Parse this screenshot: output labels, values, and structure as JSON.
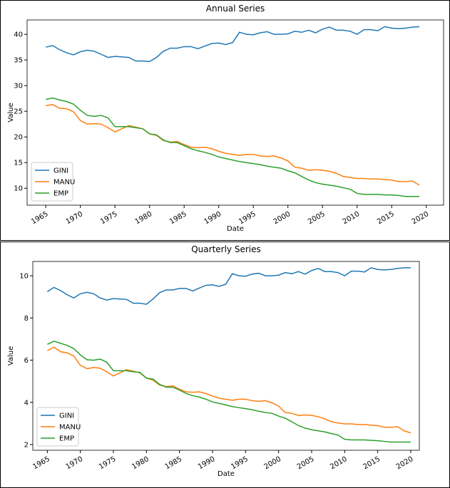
{
  "chart_data": [
    {
      "type": "line",
      "title": "Annual Series",
      "x_label": "Date",
      "y_label": "Value",
      "x": [
        1965,
        1966,
        1967,
        1968,
        1969,
        1970,
        1971,
        1972,
        1973,
        1974,
        1975,
        1976,
        1977,
        1978,
        1979,
        1980,
        1981,
        1982,
        1983,
        1984,
        1985,
        1986,
        1987,
        1988,
        1989,
        1990,
        1991,
        1992,
        1993,
        1994,
        1995,
        1996,
        1997,
        1998,
        1999,
        2000,
        2001,
        2002,
        2003,
        2004,
        2005,
        2006,
        2007,
        2008,
        2009,
        2010,
        2011,
        2012,
        2013,
        2014,
        2015,
        2016,
        2017,
        2018,
        2019
      ],
      "series": [
        {
          "name": "GINI",
          "color": "#1f77b4",
          "values": [
            37.5,
            37.8,
            37.0,
            36.4,
            36.0,
            36.6,
            36.9,
            36.7,
            36.1,
            35.5,
            35.7,
            35.6,
            35.5,
            34.8,
            34.8,
            34.7,
            35.5,
            36.7,
            37.3,
            37.3,
            37.6,
            37.6,
            37.2,
            37.7,
            38.2,
            38.3,
            38.0,
            38.4,
            40.4,
            40.0,
            39.9,
            40.3,
            40.5,
            40.0,
            40.0,
            40.1,
            40.6,
            40.4,
            40.8,
            40.3,
            41.0,
            41.4,
            40.8,
            40.8,
            40.6,
            40.0,
            40.9,
            40.9,
            40.7,
            41.5,
            41.2,
            41.1,
            41.2,
            41.4,
            41.5
          ]
        },
        {
          "name": "MANU",
          "color": "#ff7f0e",
          "values": [
            26.1,
            26.3,
            25.6,
            25.5,
            24.9,
            23.2,
            22.5,
            22.6,
            22.5,
            21.8,
            21.0,
            21.6,
            22.2,
            21.9,
            21.6,
            20.6,
            20.3,
            19.3,
            19.0,
            19.1,
            18.5,
            18.0,
            17.9,
            18.0,
            17.7,
            17.2,
            16.8,
            16.6,
            16.4,
            16.6,
            16.6,
            16.3,
            16.2,
            16.3,
            15.9,
            15.3,
            14.1,
            13.9,
            13.5,
            13.6,
            13.5,
            13.3,
            12.9,
            12.3,
            12.1,
            11.9,
            11.9,
            11.8,
            11.8,
            11.7,
            11.6,
            11.3,
            11.3,
            11.4,
            10.6
          ]
        },
        {
          "name": "EMP",
          "color": "#2ca02c",
          "values": [
            27.3,
            27.6,
            27.2,
            26.9,
            26.4,
            25.2,
            24.2,
            24.0,
            24.2,
            23.7,
            22.0,
            22.0,
            22.0,
            21.8,
            21.6,
            20.6,
            20.4,
            19.4,
            18.9,
            18.9,
            18.3,
            17.7,
            17.3,
            17.0,
            16.6,
            16.1,
            15.8,
            15.5,
            15.2,
            15.0,
            14.8,
            14.6,
            14.3,
            14.1,
            13.9,
            13.4,
            13.0,
            12.3,
            11.6,
            11.1,
            10.8,
            10.6,
            10.4,
            10.1,
            9.8,
            9.0,
            8.8,
            8.8,
            8.8,
            8.7,
            8.7,
            8.6,
            8.4,
            8.4,
            8.4
          ]
        }
      ],
      "xlim": [
        1962.3,
        2022.5
      ],
      "xticks": [
        1965,
        1970,
        1975,
        1980,
        1985,
        1990,
        1995,
        2000,
        2005,
        2010,
        2015,
        2020
      ],
      "ylim": [
        6.7,
        42.8
      ],
      "yticks": [
        10,
        15,
        20,
        25,
        30,
        35,
        40
      ],
      "legend": "lower left"
    },
    {
      "type": "line",
      "title": "Quarterly Series",
      "x_label": "Date",
      "y_label": "Value",
      "x": [
        1965,
        1966,
        1967,
        1968,
        1969,
        1970,
        1971,
        1972,
        1973,
        1974,
        1975,
        1976,
        1977,
        1978,
        1979,
        1980,
        1981,
        1982,
        1983,
        1984,
        1985,
        1986,
        1987,
        1988,
        1989,
        1990,
        1991,
        1992,
        1993,
        1994,
        1995,
        1996,
        1997,
        1998,
        1999,
        2000,
        2001,
        2002,
        2003,
        2004,
        2005,
        2006,
        2007,
        2008,
        2009,
        2010,
        2011,
        2012,
        2013,
        2014,
        2015,
        2016,
        2017,
        2018,
        2019,
        2020
      ],
      "series": [
        {
          "name": "GINI",
          "color": "#1f77b4",
          "values": [
            9.25,
            9.45,
            9.3,
            9.1,
            8.95,
            9.15,
            9.22,
            9.15,
            8.95,
            8.85,
            8.92,
            8.9,
            8.88,
            8.7,
            8.7,
            8.65,
            8.9,
            9.2,
            9.33,
            9.33,
            9.4,
            9.4,
            9.28,
            9.42,
            9.55,
            9.57,
            9.5,
            9.6,
            10.1,
            10.0,
            9.98,
            10.08,
            10.12,
            10.0,
            10.0,
            10.03,
            10.15,
            10.1,
            10.2,
            10.08,
            10.25,
            10.35,
            10.2,
            10.2,
            10.15,
            10.0,
            10.22,
            10.22,
            10.18,
            10.38,
            10.3,
            10.28,
            10.3,
            10.35,
            10.38,
            10.38
          ]
        },
        {
          "name": "MANU",
          "color": "#ff7f0e",
          "values": [
            6.45,
            6.62,
            6.4,
            6.35,
            6.2,
            5.75,
            5.6,
            5.65,
            5.62,
            5.45,
            5.25,
            5.4,
            5.55,
            5.48,
            5.4,
            5.15,
            5.05,
            4.82,
            4.75,
            4.78,
            4.62,
            4.5,
            4.48,
            4.5,
            4.42,
            4.3,
            4.2,
            4.15,
            4.1,
            4.15,
            4.15,
            4.08,
            4.05,
            4.08,
            3.98,
            3.82,
            3.52,
            3.48,
            3.38,
            3.4,
            3.38,
            3.32,
            3.22,
            3.08,
            3.02,
            2.98,
            2.98,
            2.95,
            2.95,
            2.92,
            2.9,
            2.82,
            2.82,
            2.85,
            2.65,
            2.55
          ]
        },
        {
          "name": "EMP",
          "color": "#2ca02c",
          "values": [
            6.75,
            6.9,
            6.8,
            6.7,
            6.55,
            6.25,
            6.02,
            6.0,
            6.05,
            5.9,
            5.5,
            5.5,
            5.5,
            5.45,
            5.42,
            5.15,
            5.1,
            4.85,
            4.72,
            4.72,
            4.58,
            4.42,
            4.32,
            4.25,
            4.15,
            4.02,
            3.95,
            3.88,
            3.8,
            3.75,
            3.7,
            3.65,
            3.58,
            3.52,
            3.48,
            3.35,
            3.25,
            3.08,
            2.9,
            2.78,
            2.7,
            2.65,
            2.6,
            2.52,
            2.45,
            2.25,
            2.22,
            2.22,
            2.22,
            2.2,
            2.18,
            2.15,
            2.12,
            2.12,
            2.12,
            2.12
          ]
        }
      ],
      "xlim": [
        1962.8,
        2021.3
      ],
      "xticks": [
        1965,
        1970,
        1975,
        1980,
        1985,
        1990,
        1995,
        2000,
        2005,
        2010,
        2015,
        2020
      ],
      "ylim": [
        1.73,
        10.68
      ],
      "yticks": [
        2,
        4,
        6,
        8,
        10
      ],
      "legend": "lower left"
    }
  ]
}
